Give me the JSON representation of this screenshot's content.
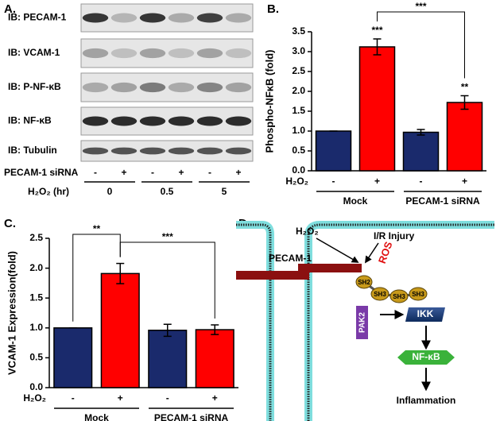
{
  "panel_a": {
    "label": "A.",
    "rows": [
      "IB: PECAM-1",
      "IB: VCAM-1",
      "IB: P-NF-κB",
      "IB: NF-κB",
      "IB: Tubulin"
    ],
    "sirna_label": "PECAM-1 siRNA",
    "sirna_signs": [
      "-",
      "+",
      "-",
      "+",
      "-",
      "+"
    ],
    "time_label": "H₂O₂ (hr)",
    "times": [
      "0",
      "0.5",
      "5"
    ]
  },
  "chart_data": [
    {
      "type": "bar",
      "panel_label": "B.",
      "ylabel": "Phospho-NFκB (fold)",
      "x_factor_label": "H₂O₂",
      "categories": [
        "-",
        "+",
        "-",
        "+"
      ],
      "groups": [
        "Mock",
        "PECAM-1 siRNA"
      ],
      "values": [
        1.0,
        3.12,
        0.97,
        1.72
      ],
      "errors": [
        0,
        0.2,
        0.07,
        0.17
      ],
      "colors": [
        "#1a2a6c",
        "#ff0000",
        "#1a2a6c",
        "#ff0000"
      ],
      "ylim": [
        0,
        3.5
      ],
      "yticks": [
        {
          "value": 0,
          "label": "0.0"
        },
        {
          "value": 0.5,
          "label": "0.5"
        },
        {
          "value": 1,
          "label": "1.0"
        },
        {
          "value": 1.5,
          "label": "1.5"
        },
        {
          "value": 2,
          "label": "2.0"
        },
        {
          "value": 2.5,
          "label": "2.5"
        },
        {
          "value": 3,
          "label": "3.0"
        },
        {
          "value": 3.5,
          "label": "3.5"
        }
      ],
      "annotations": [
        {
          "category_index": 1,
          "text": "***"
        },
        {
          "category_index": 3,
          "text": "**"
        }
      ],
      "brackets": [
        {
          "from": 1,
          "to": 3,
          "text": "***"
        }
      ]
    },
    {
      "type": "bar",
      "panel_label": "C.",
      "ylabel": "VCAM-1 Expression(fold)",
      "x_factor_label": "H₂O₂",
      "categories": [
        "-",
        "+",
        "-",
        "+"
      ],
      "groups": [
        "Mock",
        "PECAM-1 siRNA"
      ],
      "values": [
        1.0,
        1.91,
        0.96,
        0.97
      ],
      "errors": [
        0,
        0.17,
        0.1,
        0.08
      ],
      "colors": [
        "#1a2a6c",
        "#ff0000",
        "#1a2a6c",
        "#ff0000"
      ],
      "ylim": [
        0,
        2.5
      ],
      "yticks": [
        {
          "value": 0,
          "label": "0.0"
        },
        {
          "value": 0.5,
          "label": "0.5"
        },
        {
          "value": 1,
          "label": "1.0"
        },
        {
          "value": 1.5,
          "label": "1.5"
        },
        {
          "value": 2,
          "label": "2.0"
        },
        {
          "value": 2.5,
          "label": "2.5"
        }
      ],
      "annotations": [],
      "brackets": [
        {
          "from": 0,
          "to": 1,
          "text": "**"
        },
        {
          "from": 1,
          "to": 3,
          "text": "***"
        }
      ]
    }
  ],
  "panel_d": {
    "label": "D.",
    "h2o2": "H₂O₂",
    "injury": "I/R Injury",
    "ros": "ROS",
    "pecam": "PECAM-1",
    "sh2": "SH2",
    "sh3": [
      "SH3",
      "SH3",
      "SH3"
    ],
    "pak2": "PAK2",
    "ikk": "IKK",
    "nfkb": "NF-κB",
    "outcome": "Inflammation"
  }
}
